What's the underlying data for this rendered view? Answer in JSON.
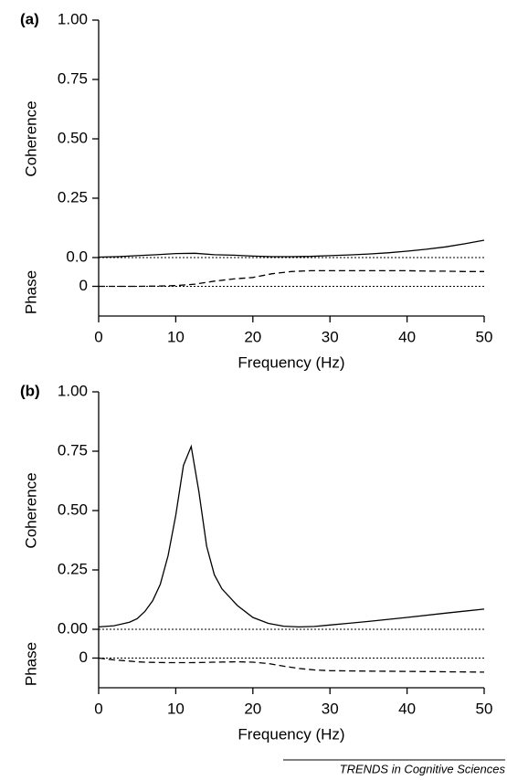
{
  "chart_data": [
    {
      "type": "line",
      "panel": "(a)",
      "xlabel": "Frequency (Hz)",
      "x": [
        0,
        2.5,
        5,
        7.5,
        10,
        12.5,
        15,
        17.5,
        20,
        22.5,
        25,
        27.5,
        30,
        32.5,
        35,
        37.5,
        40,
        42.5,
        45,
        47.5,
        50
      ],
      "xlim": [
        0,
        50
      ],
      "xticks": [
        0,
        10,
        20,
        30,
        40,
        50
      ],
      "coherence": {
        "ylabel": "Coherence",
        "ylim": [
          0,
          1
        ],
        "yticks": [
          {
            "value": 0,
            "label": "0.0"
          },
          0.25,
          {
            "value": 0.5,
            "label": "0.50"
          },
          0.75,
          {
            "value": 1,
            "label": "1.00"
          }
        ],
        "values": [
          0.002,
          0.004,
          0.008,
          0.012,
          0.017,
          0.018,
          0.012,
          0.01,
          0.006,
          0.004,
          0.004,
          0.005,
          0.008,
          0.011,
          0.015,
          0.02,
          0.027,
          0.035,
          0.045,
          0.058,
          0.073
        ]
      },
      "phase": {
        "ylabel": "Phase",
        "ylim": [
          -2,
          1.2
        ],
        "yticks": [
          0
        ],
        "values": [
          0,
          0,
          0,
          0.02,
          0.05,
          0.15,
          0.35,
          0.5,
          0.6,
          0.85,
          1.0,
          1.05,
          1.05,
          1.05,
          1.05,
          1.05,
          1.05,
          1.03,
          1.02,
          1.0,
          1.0
        ]
      }
    },
    {
      "type": "line",
      "panel": "(b)",
      "xlabel": "Frequency (Hz)",
      "x": [
        0,
        2,
        4,
        5,
        6,
        7,
        8,
        9,
        10,
        11,
        12,
        13,
        14,
        15,
        16,
        18,
        20,
        22,
        24,
        26,
        28,
        30,
        35,
        40,
        45,
        50
      ],
      "xlim": [
        0,
        50
      ],
      "xticks": [
        0,
        10,
        20,
        30,
        40,
        50
      ],
      "coherence": {
        "ylabel": "Coherence",
        "ylim": [
          0,
          1
        ],
        "yticks": [
          {
            "value": 0,
            "label": "0.00"
          },
          0.25,
          {
            "value": 0.5,
            "label": "0.50"
          },
          0.75,
          {
            "value": 1,
            "label": "1.00"
          }
        ],
        "values": [
          0.01,
          0.015,
          0.03,
          0.045,
          0.075,
          0.12,
          0.19,
          0.31,
          0.48,
          0.69,
          0.77,
          0.58,
          0.35,
          0.23,
          0.17,
          0.1,
          0.05,
          0.025,
          0.013,
          0.01,
          0.012,
          0.018,
          0.033,
          0.05,
          0.068,
          0.085
        ]
      },
      "phase": {
        "ylabel": "Phase",
        "ylim": [
          -2,
          1.2
        ],
        "yticks": [
          0
        ],
        "values": [
          0,
          -0.12,
          -0.2,
          -0.25,
          -0.28,
          -0.29,
          -0.3,
          -0.31,
          -0.31,
          -0.31,
          -0.31,
          -0.3,
          -0.29,
          -0.28,
          -0.27,
          -0.25,
          -0.28,
          -0.37,
          -0.55,
          -0.7,
          -0.8,
          -0.85,
          -0.88,
          -0.9,
          -0.92,
          -0.95
        ]
      }
    }
  ],
  "source": "TRENDS in Cognitive Sciences"
}
